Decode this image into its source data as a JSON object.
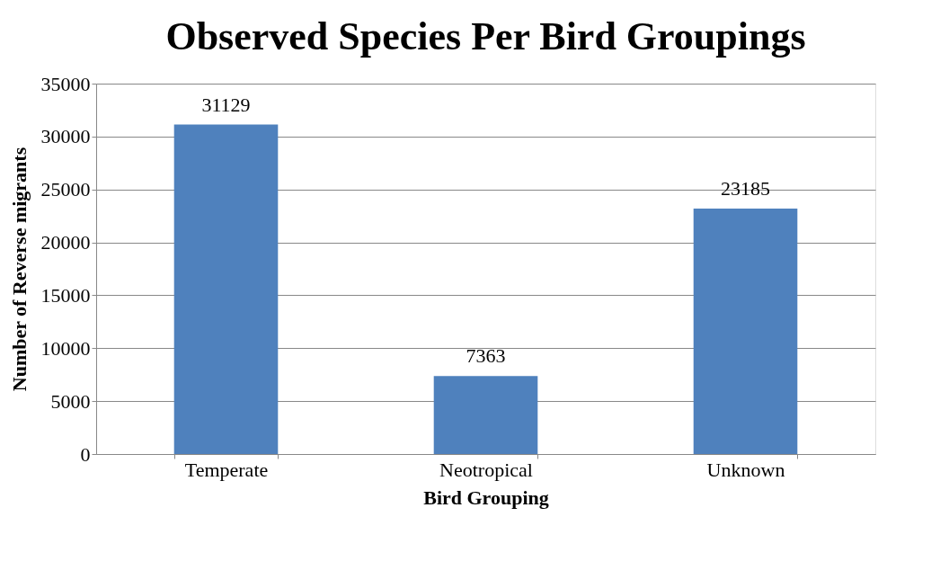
{
  "chart_data": {
    "type": "bar",
    "title": "Observed Species Per Bird Groupings",
    "xlabel": "Bird Grouping",
    "ylabel": "Number of Reverse migrants",
    "categories": [
      "Temperate",
      "Neotropical",
      "Unknown"
    ],
    "values": [
      31129,
      7363,
      23185
    ],
    "color": "#4f81bd",
    "ylim": [
      0,
      35000
    ],
    "yticks": [
      0,
      5000,
      10000,
      15000,
      20000,
      25000,
      30000,
      35000
    ],
    "grid": "y",
    "data_labels": true
  }
}
